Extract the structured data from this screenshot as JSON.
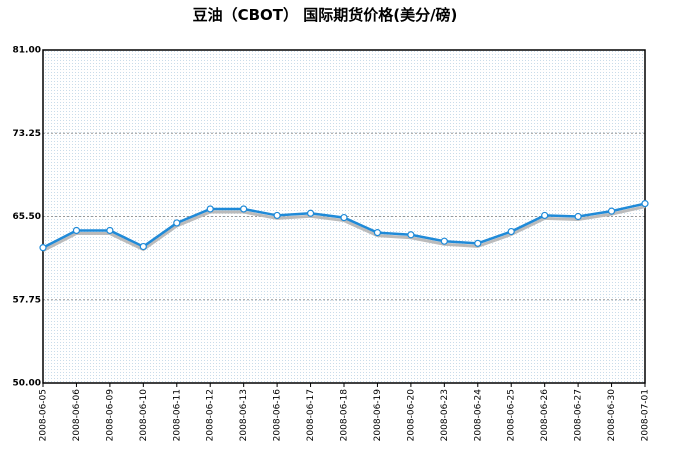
{
  "chart_data": {
    "type": "line",
    "title": "豆油（CBOT） 国际期货价格(美分/磅)",
    "categories": [
      "2008-06-05",
      "2008-06-06",
      "2008-06-09",
      "2008-06-10",
      "2008-06-11",
      "2008-06-12",
      "2008-06-13",
      "2008-06-16",
      "2008-06-17",
      "2008-06-18",
      "2008-06-19",
      "2008-06-20",
      "2008-06-23",
      "2008-06-24",
      "2008-06-25",
      "2008-06-26",
      "2008-06-27",
      "2008-06-30",
      "2008-07-01"
    ],
    "series": [
      {
        "color": "#1f8ad8",
        "values": [
          62.6,
          64.2,
          64.2,
          62.7,
          64.9,
          66.2,
          66.2,
          65.6,
          65.8,
          65.4,
          64.0,
          63.8,
          63.2,
          63.0,
          64.1,
          65.6,
          65.5,
          66.0,
          66.7
        ]
      }
    ],
    "ylim": [
      50,
      81
    ],
    "yticks": [
      {
        "value": 50,
        "label": "50.00"
      },
      {
        "value": 57.75,
        "label": "57.75"
      },
      {
        "value": 65.5,
        "label": "65.50"
      },
      {
        "value": 73.25,
        "label": "73.25"
      },
      {
        "value": 81,
        "label": "81.00"
      }
    ],
    "grid": true
  }
}
